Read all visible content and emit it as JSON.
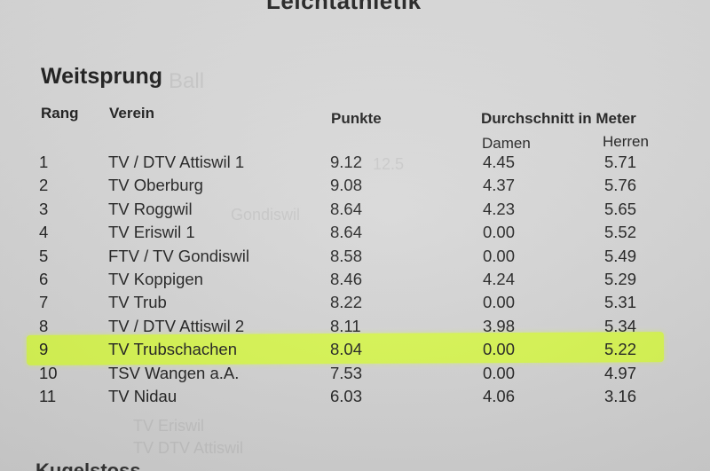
{
  "section_title": "Weitsprung",
  "headers": {
    "rang": "Rang",
    "verein": "Verein",
    "punkte": "Punkte",
    "durchschnitt": "Durchschnitt in Meter",
    "damen": "Damen",
    "herren": "Herren"
  },
  "rows": [
    {
      "rang": "1",
      "verein": "TV / DTV Attiswil 1",
      "punkte": "9.12",
      "damen": "4.45",
      "herren": "5.71"
    },
    {
      "rang": "2",
      "verein": "TV Oberburg",
      "punkte": "9.08",
      "damen": "4.37",
      "herren": "5.76"
    },
    {
      "rang": "3",
      "verein": "TV Roggwil",
      "punkte": "8.64",
      "damen": "4.23",
      "herren": "5.65"
    },
    {
      "rang": "4",
      "verein": "TV Eriswil 1",
      "punkte": "8.64",
      "damen": "0.00",
      "herren": "5.52"
    },
    {
      "rang": "5",
      "verein": "FTV / TV Gondiswil",
      "punkte": "8.58",
      "damen": "0.00",
      "herren": "5.49"
    },
    {
      "rang": "6",
      "verein": "TV Koppigen",
      "punkte": "8.46",
      "damen": "4.24",
      "herren": "5.29"
    },
    {
      "rang": "7",
      "verein": "TV Trub",
      "punkte": "8.22",
      "damen": "0.00",
      "herren": "5.31"
    },
    {
      "rang": "8",
      "verein": "TV / DTV Attiswil 2",
      "punkte": "8.11",
      "damen": "3.98",
      "herren": "5.34"
    },
    {
      "rang": "9",
      "verein": "TV Trubschachen",
      "punkte": "8.04",
      "damen": "0.00",
      "herren": "5.22"
    },
    {
      "rang": "10",
      "verein": "TSV Wangen a.A.",
      "punkte": "7.53",
      "damen": "0.00",
      "herren": "4.97"
    },
    {
      "rang": "11",
      "verein": "TV Nidau",
      "punkte": "6.03",
      "damen": "4.06",
      "herren": "3.16"
    }
  ],
  "highlighted_rank": "9",
  "colors": {
    "paper": "#d6d6d6",
    "text": "#1e1e1e",
    "highlight": "#d8f84a"
  }
}
